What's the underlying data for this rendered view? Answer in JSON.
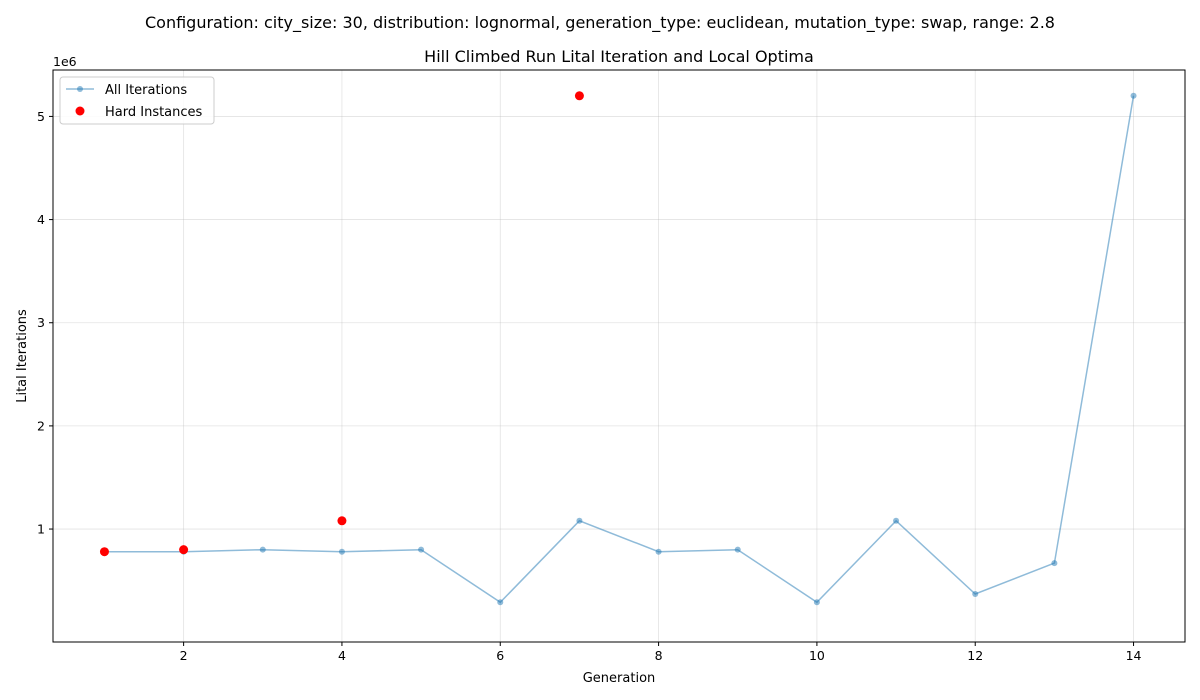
{
  "suptitle": "Configuration: city_size: 30, distribution: lognormal, generation_type: euclidean, mutation_type: swap, range: 2.8",
  "chart_data": {
    "type": "line",
    "title": "Hill Climbed Run Lital Iteration and Local Optima",
    "xlabel": "Generation",
    "ylabel": "Lital Iterations",
    "y_offset_label": "1e6",
    "xlim": [
      0.35,
      14.65
    ],
    "ylim": [
      -95000,
      5450000
    ],
    "xticks": [
      2,
      4,
      6,
      8,
      10,
      12,
      14
    ],
    "yticks": [
      1000000,
      2000000,
      3000000,
      4000000,
      5000000
    ],
    "ytick_labels": [
      "1",
      "2",
      "3",
      "4",
      "5"
    ],
    "grid": true,
    "legend_position": "top-left",
    "series": [
      {
        "name": "All Iterations",
        "kind": "line",
        "color": "#1f77b4",
        "x": [
          1,
          2,
          3,
          4,
          5,
          6,
          7,
          8,
          9,
          10,
          11,
          12,
          13,
          14
        ],
        "y": [
          780000,
          780000,
          800000,
          780000,
          800000,
          290000,
          1080000,
          780000,
          800000,
          290000,
          1080000,
          370000,
          670000,
          5200000
        ]
      },
      {
        "name": "Hard Instances",
        "kind": "scatter",
        "color": "#ff0000",
        "x": [
          1,
          2,
          4,
          7
        ],
        "y": [
          780000,
          800000,
          1080000,
          5200000
        ]
      }
    ]
  }
}
